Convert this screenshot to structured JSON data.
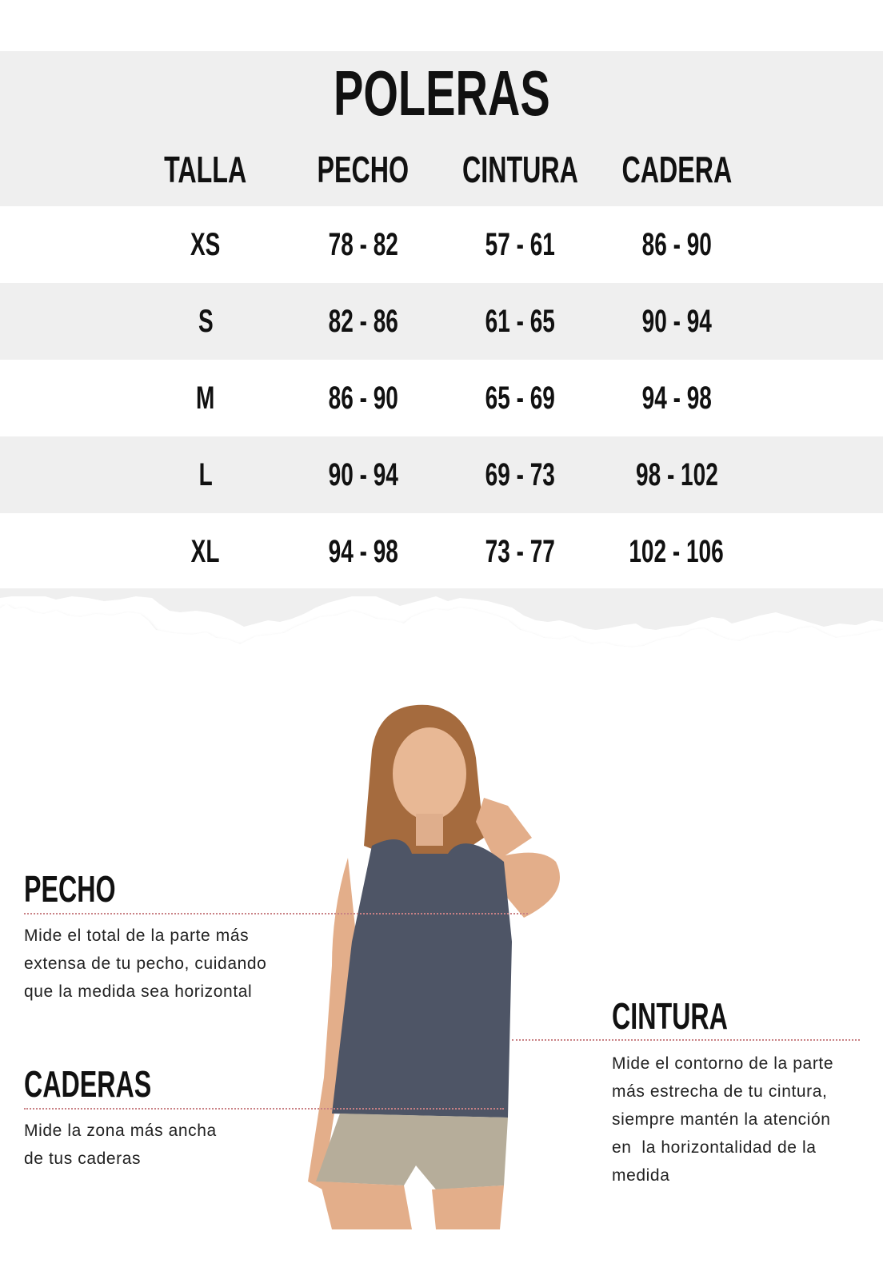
{
  "title": "POLERAS",
  "table": {
    "headers": [
      "TALLA",
      "PECHO",
      "CINTURA",
      "CADERA"
    ],
    "rows": [
      [
        "XS",
        "78 - 82",
        "57 - 61",
        "86 - 90"
      ],
      [
        "S",
        "82 - 86",
        "61 - 65",
        "90 - 94"
      ],
      [
        "M",
        "86 - 90",
        "65 - 69",
        "94 - 98"
      ],
      [
        "L",
        "90 - 94",
        "69 - 73",
        "98 - 102"
      ],
      [
        "XL",
        "94 - 98",
        "73 - 77",
        "102 - 106"
      ]
    ]
  },
  "guide": {
    "pecho": {
      "title": "PECHO",
      "lines": [
        "Mide el total de la parte más",
        "extensa de tu pecho, cuidando",
        "que la medida sea horizontal"
      ]
    },
    "caderas": {
      "title": "CADERAS",
      "lines": [
        "Mide la zona más ancha",
        "de tus caderas"
      ]
    },
    "cintura": {
      "title": "CINTURA",
      "lines": [
        "Mide el contorno de la parte",
        "más estrecha de tu cintura,",
        "siempre mantén la atención",
        "en  la horizontalidad de la",
        "medida"
      ]
    }
  },
  "colors": {
    "band": "#efefef",
    "dotted_line": "#c98185",
    "text": "#111111"
  }
}
